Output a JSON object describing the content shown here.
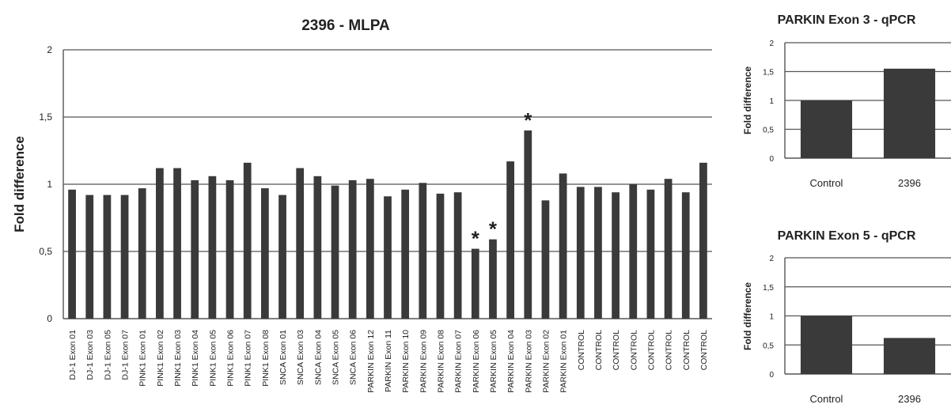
{
  "chart_data": [
    {
      "type": "bar",
      "title": "2396 - MLPA",
      "xlabel": "",
      "ylabel": "Fold difference",
      "ylim": [
        0,
        2
      ],
      "yticks": [
        0,
        0.5,
        1,
        1.5,
        2
      ],
      "ytick_labels": [
        "0",
        "0,5",
        "1",
        "1,5",
        "2"
      ],
      "grid": true,
      "bar_color": "#3a3a3a",
      "categories": [
        "DJ-1 Exon 01",
        "DJ-1 Exon 03",
        "DJ-1 Exon 05",
        "DJ-1 Exon 07",
        "PINK1 Exon 01",
        "PINK1 Exon 02",
        "PINK1 Exon 03",
        "PINK1 Exon 04",
        "PINK1 Exon 05",
        "PINK1 Exon 06",
        "PINK1 Exon 07",
        "PINK1 Exon 08",
        "SNCA Exon 01",
        "SNCA Exon 03",
        "SNCA Exon 04",
        "SNCA Exon 05",
        "SNCA Exon 06",
        "PARKIN Exon 12",
        "PARKIN Exon 11",
        "PARKIN Exon 10",
        "PARKIN Exon 09",
        "PARKIN Exon 08",
        "PARKIN Exon 07",
        "PARKIN Exon 06",
        "PARKIN Exon 05",
        "PARKIN Exon 04",
        "PARKIN Exon 03",
        "PARKIN Exon 02",
        "PARKIN Exon 01",
        "CONTROL",
        "CONTROL",
        "CONTROL",
        "CONTROL",
        "CONTROL",
        "CONTROL",
        "CONTROL",
        "CONTROL"
      ],
      "values": [
        0.96,
        0.92,
        0.92,
        0.92,
        0.97,
        1.12,
        1.12,
        1.03,
        1.06,
        1.03,
        1.16,
        0.97,
        0.92,
        1.12,
        1.06,
        0.99,
        1.03,
        1.04,
        0.91,
        0.96,
        1.01,
        0.93,
        0.94,
        0.52,
        0.59,
        1.17,
        1.4,
        0.88,
        1.08,
        0.98,
        0.98,
        0.94,
        1.0,
        0.96,
        1.04,
        0.94,
        1.16
      ],
      "annotations": [
        {
          "text": "*",
          "category_index": 23
        },
        {
          "text": "*",
          "category_index": 24
        },
        {
          "text": "*",
          "category_index": 26
        }
      ]
    },
    {
      "type": "bar",
      "title": "PARKIN Exon 3 - qPCR",
      "xlabel": "",
      "ylabel": "Fold difference",
      "ylim": [
        0,
        2
      ],
      "yticks": [
        0,
        0.5,
        1,
        1.5,
        2
      ],
      "ytick_labels": [
        "0",
        "0,5",
        "1",
        "1,5",
        "2"
      ],
      "grid": true,
      "bar_color": "#3a3a3a",
      "categories": [
        "Control",
        "2396"
      ],
      "values": [
        1.0,
        1.55
      ]
    },
    {
      "type": "bar",
      "title": "PARKIN Exon 5 - qPCR",
      "xlabel": "",
      "ylabel": "Fold difference",
      "ylim": [
        0,
        2
      ],
      "yticks": [
        0,
        0.5,
        1,
        1.5,
        2
      ],
      "ytick_labels": [
        "0",
        "0,5",
        "1",
        "1,5",
        "2"
      ],
      "grid": true,
      "bar_color": "#3a3a3a",
      "categories": [
        "Control",
        "2396"
      ],
      "values": [
        1.0,
        0.62
      ]
    }
  ]
}
